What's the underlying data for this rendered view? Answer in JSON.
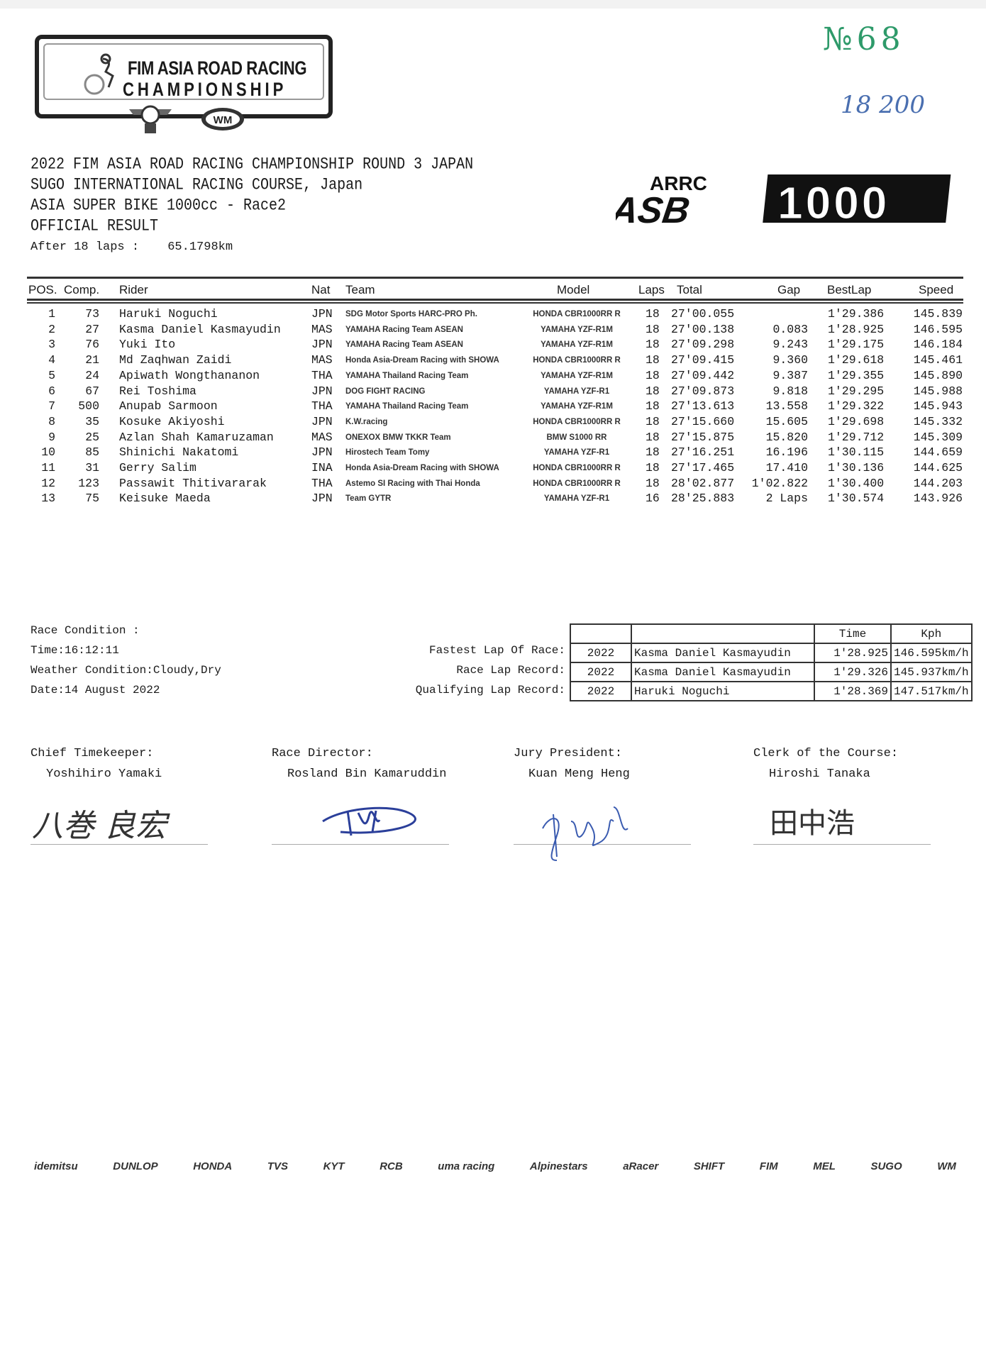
{
  "header": {
    "logo_line1": "FIM ASIA ROAD RACING",
    "logo_line2": "CHAMPIONSHIP",
    "doc_number": "№68",
    "handwritten_note": "18 200",
    "series_logo_top": "ARRC",
    "series_logo_left": "ASB",
    "series_logo_right": "1000",
    "title_lines": [
      "2022 FIM ASIA ROAD RACING CHAMPIONSHIP ROUND 3 JAPAN",
      "SUGO INTERNATIONAL RACING COURSE, Japan",
      "ASIA SUPER BIKE 1000cc - Race2",
      "OFFICIAL RESULT"
    ],
    "after_label": "After  18 laps :",
    "distance": "65.1798km"
  },
  "results": {
    "columns": [
      "POS.",
      "Comp.",
      "Rider",
      "Nat",
      "Team",
      "Model",
      "Laps",
      "Total",
      "Gap",
      "BestLap",
      "Speed"
    ],
    "rows": [
      [
        "1",
        "73",
        "Haruki Noguchi",
        "JPN",
        "SDG Motor Sports HARC-PRO Ph.",
        "HONDA CBR1000RR R",
        "18",
        "27'00.055",
        "",
        "1'29.386",
        "145.839"
      ],
      [
        "2",
        "27",
        "Kasma Daniel Kasmayudin",
        "MAS",
        "YAMAHA Racing Team ASEAN",
        "YAMAHA YZF-R1M",
        "18",
        "27'00.138",
        "0.083",
        "1'28.925",
        "146.595"
      ],
      [
        "3",
        "76",
        "Yuki Ito",
        "JPN",
        "YAMAHA Racing Team ASEAN",
        "YAMAHA YZF-R1M",
        "18",
        "27'09.298",
        "9.243",
        "1'29.175",
        "146.184"
      ],
      [
        "4",
        "21",
        "Md Zaqhwan Zaidi",
        "MAS",
        "Honda Asia-Dream Racing with SHOWA",
        "HONDA CBR1000RR R",
        "18",
        "27'09.415",
        "9.360",
        "1'29.618",
        "145.461"
      ],
      [
        "5",
        "24",
        "Apiwath Wongthananon",
        "THA",
        "YAMAHA Thailand Racing Team",
        "YAMAHA YZF-R1M",
        "18",
        "27'09.442",
        "9.387",
        "1'29.355",
        "145.890"
      ],
      [
        "6",
        "67",
        "Rei Toshima",
        "JPN",
        "DOG FIGHT RACING",
        "YAMAHA YZF-R1",
        "18",
        "27'09.873",
        "9.818",
        "1'29.295",
        "145.988"
      ],
      [
        "7",
        "500",
        "Anupab Sarmoon",
        "THA",
        "YAMAHA Thailand Racing Team",
        "YAMAHA YZF-R1M",
        "18",
        "27'13.613",
        "13.558",
        "1'29.322",
        "145.943"
      ],
      [
        "8",
        "35",
        "Kosuke Akiyoshi",
        "JPN",
        "K.W.racing",
        "HONDA CBR1000RR R",
        "18",
        "27'15.660",
        "15.605",
        "1'29.698",
        "145.332"
      ],
      [
        "9",
        "25",
        "Azlan Shah Kamaruzaman",
        "MAS",
        "ONEXOX BMW TKKR Team",
        "BMW S1000 RR",
        "18",
        "27'15.875",
        "15.820",
        "1'29.712",
        "145.309"
      ],
      [
        "10",
        "85",
        "Shinichi Nakatomi",
        "JPN",
        "Hirostech Team Tomy",
        "YAMAHA YZF-R1",
        "18",
        "27'16.251",
        "16.196",
        "1'30.115",
        "144.659"
      ],
      [
        "11",
        "31",
        "Gerry Salim",
        "INA",
        "Honda Asia-Dream Racing with SHOWA",
        "HONDA CBR1000RR R",
        "18",
        "27'17.465",
        "17.410",
        "1'30.136",
        "144.625"
      ],
      [
        "12",
        "123",
        "Passawit Thitivararak",
        "THA",
        "Astemo SI Racing with Thai Honda",
        "HONDA CBR1000RR R",
        "18",
        "28'02.877",
        "1'02.822",
        "1'30.400",
        "144.203"
      ],
      [
        "13",
        "75",
        "Keisuke Maeda",
        "JPN",
        "Team GYTR",
        "YAMAHA YZF-R1",
        "16",
        "28'25.883",
        "2 Laps",
        "1'30.574",
        "143.926"
      ]
    ]
  },
  "conditions": {
    "heading": "Race Condition :",
    "time": "Time:16:12:11",
    "weather": "Weather Condition:Cloudy,Dry",
    "date": "Date:14 August 2022"
  },
  "records": {
    "header_time": "Time",
    "header_kph": "Kph",
    "rows": [
      {
        "label": "Fastest Lap Of Race:",
        "year": "2022",
        "rider": "Kasma Daniel Kasmayudin",
        "time": "1'28.925",
        "kph": "146.595km/h"
      },
      {
        "label": "Race Lap Record:",
        "year": "2022",
        "rider": "Kasma Daniel Kasmayudin",
        "time": "1'29.326",
        "kph": "145.937km/h"
      },
      {
        "label": "Qualifying Lap Record:",
        "year": "2022",
        "rider": "Haruki Noguchi",
        "time": "1'28.369",
        "kph": "147.517km/h"
      }
    ]
  },
  "officials": [
    {
      "title": "Chief Timekeeper:",
      "name": "Yoshihiro Yamaki",
      "signature": "八巻 良宏"
    },
    {
      "title": "Race Director:",
      "name": "Rosland Bin Kamaruddin"
    },
    {
      "title": "Jury President:",
      "name": "Kuan Meng Heng"
    },
    {
      "title": "Clerk of the Course:",
      "name": "Hiroshi Tanaka",
      "signature": "田中浩"
    }
  ],
  "sponsors": [
    "idemitsu",
    "DUNLOP",
    "HONDA",
    "TVS",
    "KYT",
    "RCB",
    "uma racing",
    "Alpinestars",
    "aRacer",
    "SHIFT",
    "FIM",
    "MEL",
    "SUGO",
    "WM"
  ],
  "colors": {
    "stamp_green": "#2e9a6a",
    "handwriting_blue": "#4a6fb0",
    "ink": "#1a1a1a"
  }
}
